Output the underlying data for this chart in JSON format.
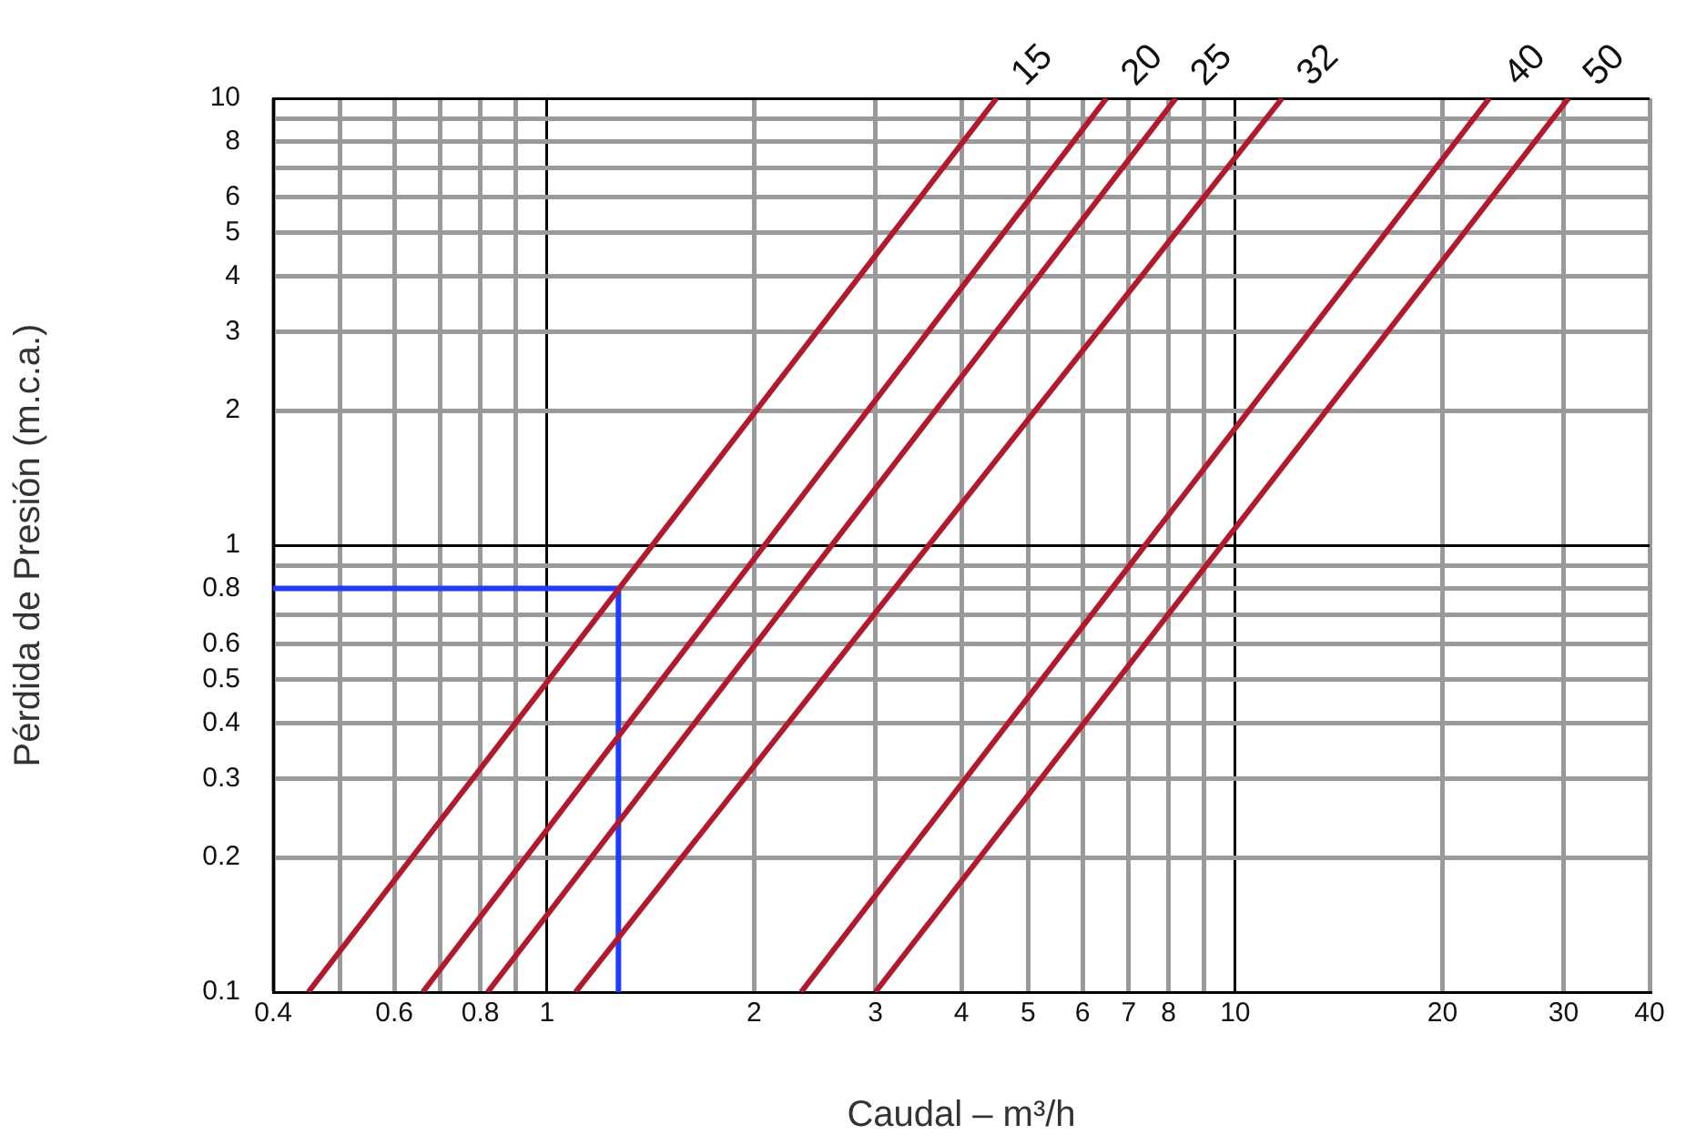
{
  "chart_data": {
    "type": "line",
    "xlabel": "Caudal – m³/h",
    "ylabel": "Pérdida de Presión (m.c.a.)",
    "log": "xy",
    "grid": true,
    "legend": false,
    "marker": "none",
    "line_style": "solid",
    "xlim": [
      0.4,
      40
    ],
    "ylim": [
      0.1,
      10
    ],
    "xticks": [
      0.4,
      {
        "value": 0.5,
        "label": null
      },
      0.6,
      {
        "value": 0.7,
        "label": null
      },
      0.8,
      {
        "value": 0.9,
        "label": null
      },
      1,
      2,
      3,
      4,
      5,
      6,
      7,
      8,
      {
        "value": 9,
        "label": null
      },
      10,
      20,
      30,
      40
    ],
    "yticks": [
      0.1,
      0.2,
      0.3,
      0.4,
      0.5,
      0.6,
      {
        "value": 0.7,
        "label": null
      },
      0.8,
      {
        "value": 0.9,
        "label": null
      },
      1,
      2,
      3,
      4,
      5,
      6,
      {
        "value": 7,
        "label": null
      },
      8,
      {
        "value": 9,
        "label": null
      },
      10
    ],
    "series": [
      {
        "name": "15",
        "color": "#b5182b",
        "x": [
          0.45,
          4.5
        ],
        "values": [
          0.1,
          10
        ]
      },
      {
        "name": "20",
        "color": "#b5182b",
        "x": [
          0.66,
          6.5
        ],
        "values": [
          0.1,
          10
        ]
      },
      {
        "name": "25",
        "color": "#b5182b",
        "x": [
          0.82,
          8.2
        ],
        "values": [
          0.1,
          10
        ]
      },
      {
        "name": "32",
        "color": "#b5182b",
        "x": [
          1.1,
          11.7
        ],
        "values": [
          0.1,
          10
        ]
      },
      {
        "name": "40",
        "color": "#b5182b",
        "x": [
          2.34,
          23.4
        ],
        "values": [
          0.1,
          10
        ]
      },
      {
        "name": "50",
        "color": "#b5182b",
        "x": [
          3,
          30.5
        ],
        "values": [
          0.1,
          10
        ]
      },
      {
        "color": "#1f3cff",
        "x": [
          0.4,
          1.27,
          1.27
        ],
        "values": [
          0.8,
          0.8,
          0.1
        ]
      }
    ]
  }
}
